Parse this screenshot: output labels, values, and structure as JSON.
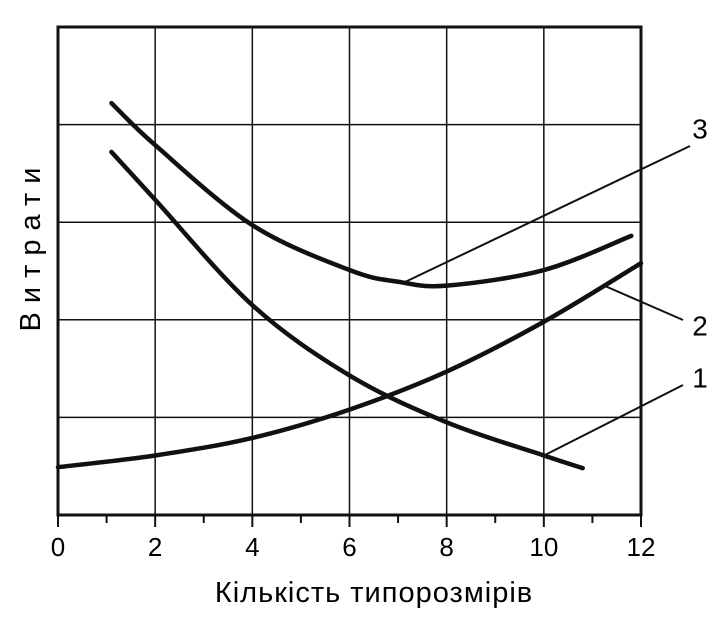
{
  "chart_data": {
    "type": "line",
    "xlabel": "Кількість типорозмірів",
    "ylabel": "Витрати",
    "xlim": [
      0,
      12
    ],
    "xticks": [
      0,
      2,
      4,
      6,
      8,
      10,
      12
    ],
    "xminorticks": [
      1,
      3,
      5,
      7,
      9,
      11
    ],
    "ylim": [
      0,
      5
    ],
    "ygrid": [
      1,
      2,
      3,
      4
    ],
    "grid": true,
    "color": "#111111",
    "series": [
      {
        "name": "1",
        "color": "#111111",
        "x": [
          1.1,
          2,
          4,
          6,
          8,
          10,
          10.8
        ],
        "values": [
          3.72,
          3.23,
          2.15,
          1.43,
          0.95,
          0.61,
          0.48
        ]
      },
      {
        "name": "2",
        "color": "#111111",
        "x": [
          0,
          2,
          4,
          6,
          8,
          10,
          12
        ],
        "values": [
          0.49,
          0.61,
          0.79,
          1.08,
          1.47,
          1.98,
          2.58
        ]
      },
      {
        "name": "3",
        "color": "#111111",
        "x": [
          1.1,
          2,
          4,
          6,
          7,
          8,
          10,
          11.8
        ],
        "values": [
          4.22,
          3.79,
          2.97,
          2.51,
          2.39,
          2.35,
          2.51,
          2.86
        ]
      }
    ]
  }
}
